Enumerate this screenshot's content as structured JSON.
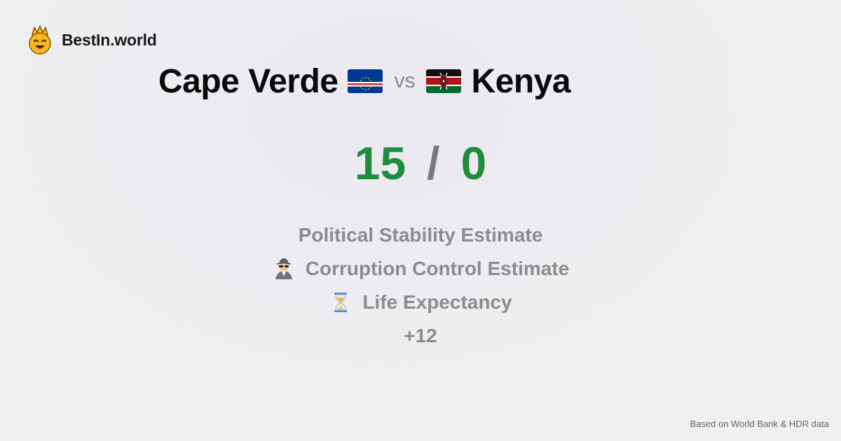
{
  "brand": {
    "name": "BestIn.world",
    "logo_icon": "crown-smiley-icon"
  },
  "comparison": {
    "left_country": "Cape Verde",
    "left_flag_icon": "cape-verde-flag-icon",
    "vs_label": "vs",
    "right_country": "Kenya",
    "right_flag_icon": "kenya-flag-icon"
  },
  "score": {
    "left": "15",
    "separator": "/",
    "right": "0"
  },
  "metrics": [
    {
      "label": "Political Stability Estimate",
      "icon": ""
    },
    {
      "label": "Corruption Control Estimate",
      "icon": "detective-icon"
    },
    {
      "label": "Life Expectancy",
      "icon": "hourglass-icon"
    }
  ],
  "more_label": "+12",
  "footer": "Based on World Bank & HDR data",
  "colors": {
    "score": "#1e8e3e",
    "muted": "#8c8c8c"
  }
}
